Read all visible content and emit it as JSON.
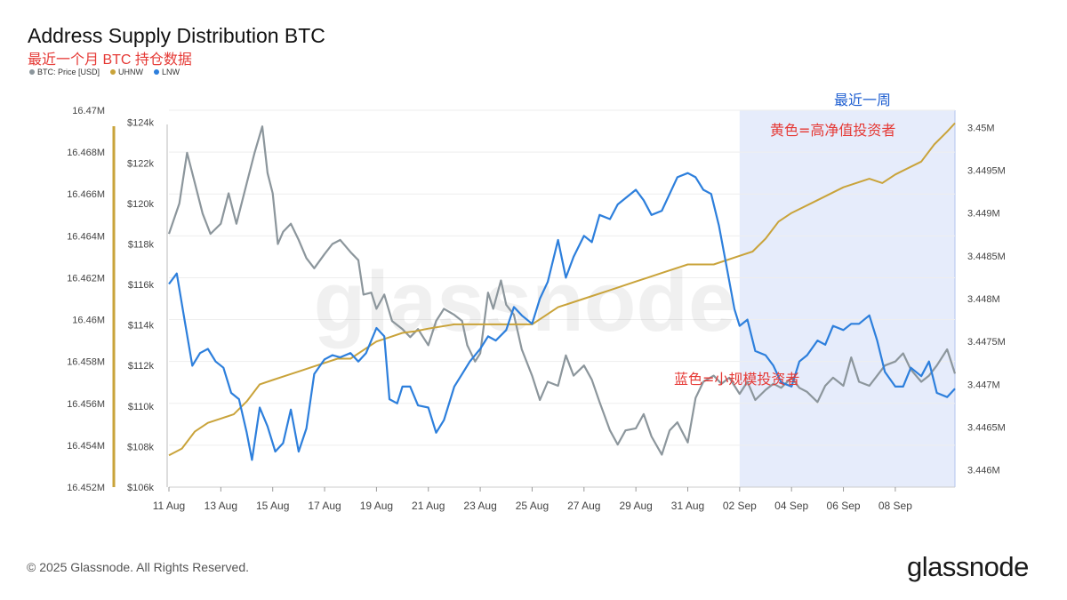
{
  "header": {
    "title": "Address Supply Distribution BTC",
    "subtitle": "最近一个月 BTC 持仓数据"
  },
  "footer": {
    "copyright": "© 2025 Glassnode. All Rights Reserved.",
    "brand": "glassnode"
  },
  "watermark": "glassnode",
  "colors": {
    "price": "#8c969c",
    "uhnw": "#c9a33a",
    "lnw": "#2d7fdc",
    "highlight": "#e6ecfb",
    "highlight_border": "#b3c4ee",
    "annotation_red": "#e53935",
    "annotation_blue": "#1f5fd1"
  },
  "chart_data": {
    "type": "line",
    "title": "Address Supply Distribution BTC",
    "subtitle": "最近一个月 BTC 持仓数据",
    "x_range": [
      "2025-08-11",
      "2025-09-10"
    ],
    "x_ticks": [
      "11 Aug",
      "13 Aug",
      "15 Aug",
      "17 Aug",
      "19 Aug",
      "21 Aug",
      "23 Aug",
      "25 Aug",
      "27 Aug",
      "29 Aug",
      "31 Aug",
      "02 Sep",
      "04 Sep",
      "06 Sep",
      "08 Sep"
    ],
    "axes": {
      "left_outer": {
        "series": "LNW",
        "ticks": [
          "16.452M",
          "16.454M",
          "16.456M",
          "16.458M",
          "16.46M",
          "16.462M",
          "16.464M",
          "16.466M",
          "16.468M",
          "16.47M"
        ],
        "range": [
          16.452,
          16.47
        ]
      },
      "left_inner": {
        "series": "BTC: Price [USD]",
        "ticks": [
          "$106k",
          "$108k",
          "$110k",
          "$112k",
          "$114k",
          "$116k",
          "$118k",
          "$120k",
          "$122k",
          "$124k"
        ],
        "range": [
          106,
          124.6
        ]
      },
      "right": {
        "series": "UHNW",
        "ticks": [
          "3.446M",
          "3.4465M",
          "3.447M",
          "3.4475M",
          "3.448M",
          "3.4485M",
          "3.449M",
          "3.4495M",
          "3.45M"
        ],
        "range": [
          3.4458,
          3.4502
        ]
      }
    },
    "legend": {
      "position": "top-left",
      "items": [
        "BTC: Price [USD]",
        "UHNW",
        "LNW"
      ]
    },
    "series": [
      {
        "name": "BTC: Price [USD]",
        "unit": "thousand USD",
        "color": "#8c969c",
        "points": [
          [
            0,
            118.5
          ],
          [
            0.4,
            120
          ],
          [
            0.7,
            122.5
          ],
          [
            1.0,
            121
          ],
          [
            1.3,
            119.5
          ],
          [
            1.6,
            118.5
          ],
          [
            2.0,
            119
          ],
          [
            2.3,
            120.5
          ],
          [
            2.6,
            119
          ],
          [
            3.0,
            121
          ],
          [
            3.3,
            122.5
          ],
          [
            3.6,
            123.8
          ],
          [
            3.8,
            121.5
          ],
          [
            4.0,
            120.5
          ],
          [
            4.2,
            118
          ],
          [
            4.4,
            118.6
          ],
          [
            4.7,
            119
          ],
          [
            5.0,
            118.2
          ],
          [
            5.3,
            117.3
          ],
          [
            5.6,
            116.8
          ],
          [
            6.0,
            117.5
          ],
          [
            6.3,
            118
          ],
          [
            6.6,
            118.2
          ],
          [
            7.0,
            117.6
          ],
          [
            7.3,
            117.2
          ],
          [
            7.5,
            115.5
          ],
          [
            7.8,
            115.6
          ],
          [
            8.0,
            114.8
          ],
          [
            8.3,
            115.5
          ],
          [
            8.6,
            114.2
          ],
          [
            9.0,
            113.8
          ],
          [
            9.3,
            113.4
          ],
          [
            9.6,
            113.8
          ],
          [
            10.0,
            113
          ],
          [
            10.3,
            114.2
          ],
          [
            10.6,
            114.8
          ],
          [
            11.0,
            114.5
          ],
          [
            11.3,
            114.2
          ],
          [
            11.5,
            113
          ],
          [
            11.8,
            112.2
          ],
          [
            12.0,
            112.6
          ],
          [
            12.3,
            115.6
          ],
          [
            12.5,
            114.8
          ],
          [
            12.8,
            116.2
          ],
          [
            13.0,
            115
          ],
          [
            13.3,
            114.5
          ],
          [
            13.6,
            112.8
          ],
          [
            14.0,
            111.5
          ],
          [
            14.3,
            110.3
          ],
          [
            14.6,
            111.2
          ],
          [
            15.0,
            111
          ],
          [
            15.3,
            112.5
          ],
          [
            15.6,
            111.5
          ],
          [
            16.0,
            112
          ],
          [
            16.3,
            111.3
          ],
          [
            16.6,
            110.2
          ],
          [
            17.0,
            108.8
          ],
          [
            17.3,
            108.1
          ],
          [
            17.6,
            108.8
          ],
          [
            18.0,
            108.9
          ],
          [
            18.3,
            109.6
          ],
          [
            18.6,
            108.5
          ],
          [
            19.0,
            107.6
          ],
          [
            19.3,
            108.8
          ],
          [
            19.6,
            109.2
          ],
          [
            20.0,
            108.2
          ],
          [
            20.3,
            110.4
          ],
          [
            20.6,
            111.2
          ],
          [
            21.0,
            111.5
          ],
          [
            21.3,
            111.1
          ],
          [
            21.6,
            111.4
          ],
          [
            22.0,
            110.6
          ],
          [
            22.3,
            111.2
          ],
          [
            22.6,
            110.3
          ],
          [
            23.0,
            110.8
          ],
          [
            23.3,
            111.1
          ],
          [
            23.6,
            110.9
          ],
          [
            24.0,
            111.4
          ],
          [
            24.3,
            110.9
          ],
          [
            24.6,
            110.7
          ],
          [
            25.0,
            110.2
          ],
          [
            25.3,
            111.0
          ],
          [
            25.6,
            111.4
          ],
          [
            26.0,
            111.0
          ],
          [
            26.3,
            112.4
          ],
          [
            26.6,
            111.2
          ],
          [
            27.0,
            111.0
          ],
          [
            27.3,
            111.5
          ],
          [
            27.6,
            112.0
          ],
          [
            28.0,
            112.2
          ],
          [
            28.3,
            112.6
          ],
          [
            28.6,
            111.8
          ],
          [
            29.0,
            111.2
          ],
          [
            29.3,
            111.5
          ],
          [
            29.6,
            112.0
          ],
          [
            30.0,
            112.8
          ],
          [
            30.3,
            111.6
          ]
        ]
      },
      {
        "name": "UHNW",
        "unit": "million BTC",
        "color": "#c9a33a",
        "points": [
          [
            0,
            3.44617
          ],
          [
            0.5,
            3.44625
          ],
          [
            1.0,
            3.44645
          ],
          [
            1.5,
            3.44655
          ],
          [
            2.0,
            3.4466
          ],
          [
            2.5,
            3.44665
          ],
          [
            3.0,
            3.4468
          ],
          [
            3.5,
            3.447
          ],
          [
            4.0,
            3.44705
          ],
          [
            4.5,
            3.4471
          ],
          [
            5.0,
            3.44715
          ],
          [
            5.5,
            3.4472
          ],
          [
            6.0,
            3.44725
          ],
          [
            6.5,
            3.4473
          ],
          [
            7.0,
            3.4473
          ],
          [
            7.5,
            3.4474
          ],
          [
            8.0,
            3.4475
          ],
          [
            8.5,
            3.44755
          ],
          [
            9.0,
            3.4476
          ],
          [
            9.5,
            3.44762
          ],
          [
            10.0,
            3.44765
          ],
          [
            11.0,
            3.4477
          ],
          [
            12.0,
            3.4477
          ],
          [
            13.0,
            3.4477
          ],
          [
            14.0,
            3.4477
          ],
          [
            14.5,
            3.4478
          ],
          [
            15.0,
            3.4479
          ],
          [
            16.0,
            3.448
          ],
          [
            17.0,
            3.4481
          ],
          [
            18.0,
            3.4482
          ],
          [
            18.5,
            3.44825
          ],
          [
            19.0,
            3.4483
          ],
          [
            20.0,
            3.4484
          ],
          [
            21.0,
            3.4484
          ],
          [
            22.0,
            3.4485
          ],
          [
            22.5,
            3.44855
          ],
          [
            23.0,
            3.4487
          ],
          [
            23.5,
            3.4489
          ],
          [
            24.0,
            3.449
          ],
          [
            25.0,
            3.44915
          ],
          [
            26.0,
            3.4493
          ],
          [
            27.0,
            3.4494
          ],
          [
            27.5,
            3.44935
          ],
          [
            28.0,
            3.44945
          ],
          [
            29.0,
            3.4496
          ],
          [
            29.5,
            3.4498
          ],
          [
            30.0,
            3.44995
          ],
          [
            30.3,
            3.45005
          ]
        ]
      },
      {
        "name": "LNW",
        "unit": "million BTC",
        "color": "#2d7fdc",
        "points": [
          [
            0,
            16.4617
          ],
          [
            0.3,
            16.4622
          ],
          [
            0.6,
            16.46
          ],
          [
            0.9,
            16.4578
          ],
          [
            1.2,
            16.4584
          ],
          [
            1.5,
            16.4586
          ],
          [
            1.8,
            16.458
          ],
          [
            2.1,
            16.4577
          ],
          [
            2.4,
            16.4565
          ],
          [
            2.7,
            16.4562
          ],
          [
            3.0,
            16.4546
          ],
          [
            3.2,
            16.4533
          ],
          [
            3.5,
            16.4558
          ],
          [
            3.8,
            16.4549
          ],
          [
            4.1,
            16.4537
          ],
          [
            4.4,
            16.4541
          ],
          [
            4.7,
            16.4557
          ],
          [
            5.0,
            16.4537
          ],
          [
            5.3,
            16.4548
          ],
          [
            5.6,
            16.4574
          ],
          [
            6.0,
            16.4581
          ],
          [
            6.3,
            16.4583
          ],
          [
            6.6,
            16.4582
          ],
          [
            7.0,
            16.4584
          ],
          [
            7.3,
            16.458
          ],
          [
            7.6,
            16.4584
          ],
          [
            8.0,
            16.4596
          ],
          [
            8.3,
            16.4592
          ],
          [
            8.5,
            16.4562
          ],
          [
            8.8,
            16.456
          ],
          [
            9.0,
            16.4568
          ],
          [
            9.3,
            16.4568
          ],
          [
            9.6,
            16.4559
          ],
          [
            10.0,
            16.4558
          ],
          [
            10.3,
            16.4546
          ],
          [
            10.6,
            16.4552
          ],
          [
            11.0,
            16.4568
          ],
          [
            11.3,
            16.4574
          ],
          [
            11.6,
            16.458
          ],
          [
            12.0,
            16.4586
          ],
          [
            12.3,
            16.4592
          ],
          [
            12.6,
            16.459
          ],
          [
            13.0,
            16.4595
          ],
          [
            13.3,
            16.4606
          ],
          [
            13.6,
            16.4602
          ],
          [
            14.0,
            16.4598
          ],
          [
            14.3,
            16.461
          ],
          [
            14.6,
            16.4618
          ],
          [
            15.0,
            16.4638
          ],
          [
            15.3,
            16.462
          ],
          [
            15.6,
            16.463
          ],
          [
            16.0,
            16.464
          ],
          [
            16.3,
            16.4637
          ],
          [
            16.6,
            16.465
          ],
          [
            17.0,
            16.4648
          ],
          [
            17.3,
            16.4655
          ],
          [
            17.6,
            16.4658
          ],
          [
            18.0,
            16.4662
          ],
          [
            18.3,
            16.4657
          ],
          [
            18.6,
            16.465
          ],
          [
            19.0,
            16.4652
          ],
          [
            19.3,
            16.466
          ],
          [
            19.6,
            16.4668
          ],
          [
            20.0,
            16.467
          ],
          [
            20.3,
            16.4668
          ],
          [
            20.6,
            16.4662
          ],
          [
            20.9,
            16.466
          ],
          [
            21.2,
            16.4645
          ],
          [
            21.5,
            16.4625
          ],
          [
            21.8,
            16.4605
          ],
          [
            22.0,
            16.4597
          ],
          [
            22.3,
            16.46
          ],
          [
            22.6,
            16.4585
          ],
          [
            23.0,
            16.4583
          ],
          [
            23.3,
            16.4578
          ],
          [
            23.6,
            16.457
          ],
          [
            24.0,
            16.4568
          ],
          [
            24.3,
            16.458
          ],
          [
            24.6,
            16.4583
          ],
          [
            25.0,
            16.459
          ],
          [
            25.3,
            16.4588
          ],
          [
            25.6,
            16.4597
          ],
          [
            26.0,
            16.4595
          ],
          [
            26.3,
            16.4598
          ],
          [
            26.6,
            16.4598
          ],
          [
            27.0,
            16.4602
          ],
          [
            27.3,
            16.459
          ],
          [
            27.6,
            16.4575
          ],
          [
            28.0,
            16.4568
          ],
          [
            28.3,
            16.4568
          ],
          [
            28.6,
            16.4577
          ],
          [
            29.0,
            16.4573
          ],
          [
            29.3,
            16.458
          ],
          [
            29.6,
            16.4565
          ],
          [
            30.0,
            16.4563
          ],
          [
            30.3,
            16.4567
          ]
        ]
      }
    ],
    "highlight": {
      "x_from": 22.0,
      "x_to": 30.3,
      "label": "最近一周"
    },
    "annotations": [
      {
        "text": "黄色=高净值投资者",
        "color": "red"
      },
      {
        "text": "蓝色=小规模投资者",
        "color": "red"
      }
    ]
  }
}
